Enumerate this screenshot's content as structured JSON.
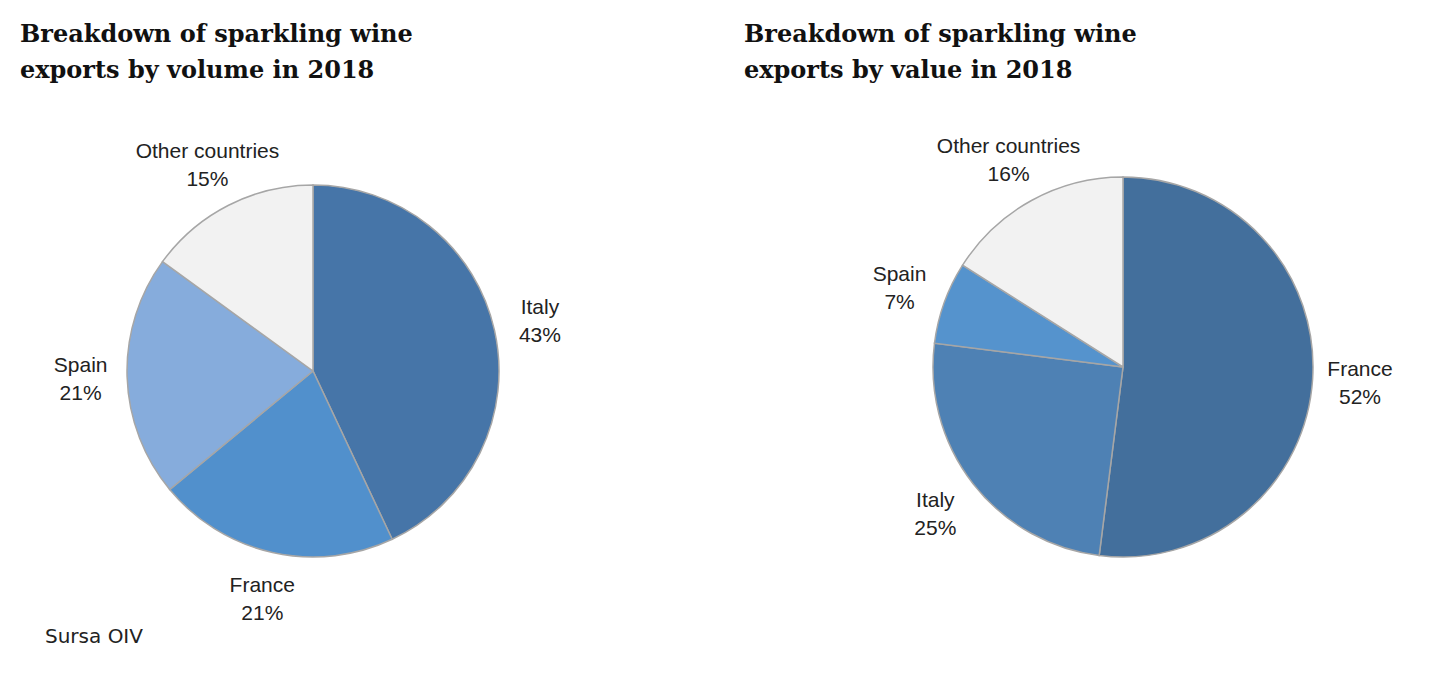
{
  "chart_data": [
    {
      "type": "pie",
      "title": "Breakdown of sparkling wine exports by volume in 2018",
      "categories": [
        "Italy",
        "France",
        "Spain",
        "Other countries"
      ],
      "values": [
        43,
        21,
        21,
        15
      ],
      "value_labels": [
        "43%",
        "21%",
        "21%",
        "15%"
      ],
      "colors": [
        "#4675a8",
        "#5190cc",
        "#86acdc",
        "#f2f2f2"
      ],
      "data_labels": true,
      "source": "Sursa OIV"
    },
    {
      "type": "pie",
      "title": "Breakdown of sparkling wine exports by value in 2018",
      "categories": [
        "France",
        "Italy",
        "Spain",
        "Other countries"
      ],
      "values": [
        52,
        25,
        7,
        16
      ],
      "value_labels": [
        "52%",
        "25%",
        "7%",
        "16%"
      ],
      "colors": [
        "#436f9c",
        "#4e81b4",
        "#5593cd",
        "#f2f2f2"
      ],
      "data_labels": true
    }
  ]
}
